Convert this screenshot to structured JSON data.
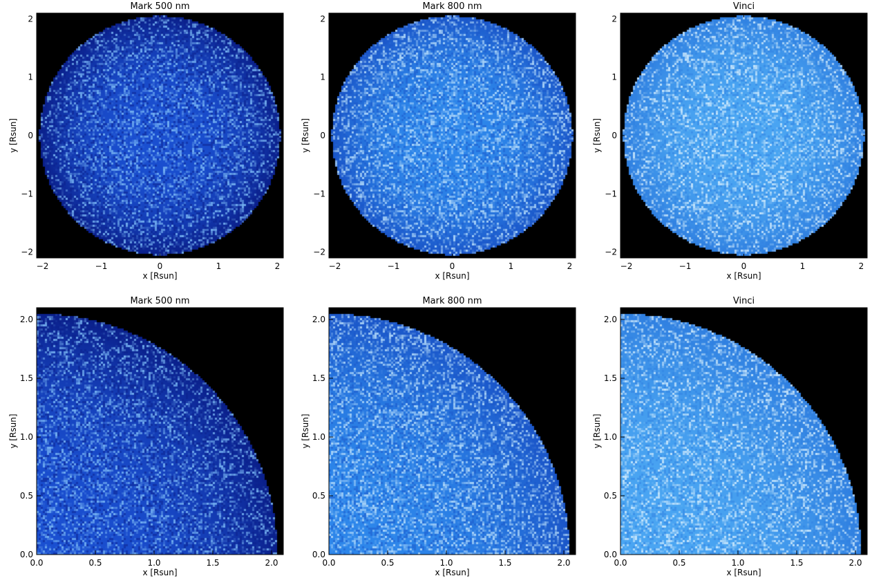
{
  "chart_data": [
    {
      "type": "heatmap",
      "title": "Mark 500 nm",
      "xlabel": "x [Rsun]",
      "ylabel": "y [Rsun]",
      "xlim": [
        -2.1,
        2.1
      ],
      "ylim": [
        -2.1,
        2.1
      ],
      "xticks": [
        -2,
        -1,
        0,
        1,
        2
      ],
      "yticks": [
        -2,
        -1,
        0,
        1,
        2
      ],
      "xtick_labels": [
        "−2",
        "−1",
        "0",
        "1",
        "2"
      ],
      "ytick_labels": [
        "−2",
        "−1",
        "0",
        "1",
        "2"
      ],
      "disk_radius": 2.05,
      "background_color": "#000000",
      "base_color": "#1a4fd0",
      "limb_color": "#0a1f8a",
      "speckle_color": "#7ab8f5",
      "speckle_level": 0.35
    },
    {
      "type": "heatmap",
      "title": "Mark 800 nm",
      "xlabel": "x [Rsun]",
      "ylabel": "y [Rsun]",
      "xlim": [
        -2.1,
        2.1
      ],
      "ylim": [
        -2.1,
        2.1
      ],
      "xticks": [
        -2,
        -1,
        0,
        1,
        2
      ],
      "yticks": [
        -2,
        -1,
        0,
        1,
        2
      ],
      "xtick_labels": [
        "−2",
        "−1",
        "0",
        "1",
        "2"
      ],
      "ytick_labels": [
        "−2",
        "−1",
        "0",
        "1",
        "2"
      ],
      "disk_radius": 2.05,
      "background_color": "#000000",
      "base_color": "#2d86ea",
      "limb_color": "#1a55c8",
      "speckle_color": "#b5dcfb",
      "speckle_level": 0.4
    },
    {
      "type": "heatmap",
      "title": "Vinci",
      "xlabel": "x [Rsun]",
      "ylabel": "y [Rsun]",
      "xlim": [
        -2.1,
        2.1
      ],
      "ylim": [
        -2.1,
        2.1
      ],
      "xticks": [
        -2,
        -1,
        0,
        1,
        2
      ],
      "yticks": [
        -2,
        -1,
        0,
        1,
        2
      ],
      "xtick_labels": [
        "−2",
        "−1",
        "0",
        "1",
        "2"
      ],
      "ytick_labels": [
        "−2",
        "−1",
        "0",
        "1",
        "2"
      ],
      "disk_radius": 2.05,
      "background_color": "#000000",
      "base_color": "#4aa5f2",
      "limb_color": "#2f7fe0",
      "speckle_color": "#d0ebfd",
      "speckle_level": 0.35
    },
    {
      "type": "heatmap",
      "title": "Mark 500 nm",
      "xlabel": "x [Rsun]",
      "ylabel": "y [Rsun]",
      "xlim": [
        0,
        2.1
      ],
      "ylim": [
        0,
        2.1
      ],
      "xticks": [
        0,
        0.5,
        1,
        1.5,
        2
      ],
      "yticks": [
        0,
        0.5,
        1,
        1.5,
        2
      ],
      "xtick_labels": [
        "0.0",
        "0.5",
        "1.0",
        "1.5",
        "2.0"
      ],
      "ytick_labels": [
        "0.0",
        "0.5",
        "1.0",
        "1.5",
        "2.0"
      ],
      "disk_radius": 2.05,
      "background_color": "#000000",
      "base_color": "#1a4fd0",
      "limb_color": "#0a1f8a",
      "speckle_color": "#7ab8f5",
      "speckle_level": 0.35
    },
    {
      "type": "heatmap",
      "title": "Mark 800 nm",
      "xlabel": "x [Rsun]",
      "ylabel": "y [Rsun]",
      "xlim": [
        0,
        2.1
      ],
      "ylim": [
        0,
        2.1
      ],
      "xticks": [
        0,
        0.5,
        1,
        1.5,
        2
      ],
      "yticks": [
        0,
        0.5,
        1,
        1.5,
        2
      ],
      "xtick_labels": [
        "0.0",
        "0.5",
        "1.0",
        "1.5",
        "2.0"
      ],
      "ytick_labels": [
        "0.0",
        "0.5",
        "1.0",
        "1.5",
        "2.0"
      ],
      "disk_radius": 2.05,
      "background_color": "#000000",
      "base_color": "#2d86ea",
      "limb_color": "#1a55c8",
      "speckle_color": "#b5dcfb",
      "speckle_level": 0.4
    },
    {
      "type": "heatmap",
      "title": "Vinci",
      "xlabel": "x [Rsun]",
      "ylabel": "y [Rsun]",
      "xlim": [
        0,
        2.1
      ],
      "ylim": [
        0,
        2.1
      ],
      "xticks": [
        0,
        0.5,
        1,
        1.5,
        2
      ],
      "yticks": [
        0,
        0.5,
        1,
        1.5,
        2
      ],
      "xtick_labels": [
        "0.0",
        "0.5",
        "1.0",
        "1.5",
        "2.0"
      ],
      "ytick_labels": [
        "0.0",
        "0.5",
        "1.0",
        "1.5",
        "2.0"
      ],
      "disk_radius": 2.05,
      "background_color": "#000000",
      "base_color": "#4aa5f2",
      "limb_color": "#2f7fe0",
      "speckle_color": "#d0ebfd",
      "speckle_level": 0.35
    }
  ]
}
